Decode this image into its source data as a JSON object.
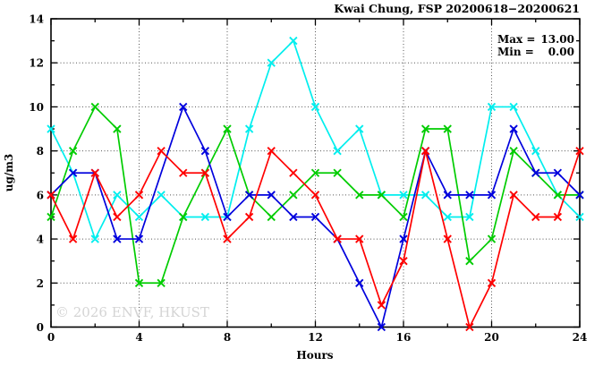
{
  "chart_data": {
    "type": "line",
    "title": "Kwai Chung, FSP 20200618−20200621",
    "xlabel": "Hours",
    "ylabel": "ug/m3",
    "xlim": [
      0,
      24
    ],
    "ylim": [
      0,
      14
    ],
    "xticks": [
      0,
      4,
      8,
      12,
      16,
      20,
      24
    ],
    "yticks": [
      0,
      2,
      4,
      6,
      8,
      10,
      12,
      14
    ],
    "x_minor_step": 2,
    "y_minor_step": 1,
    "grid": true,
    "legend": {
      "position": "top-right",
      "rows": [
        {
          "label": "Max =",
          "value": "13.00"
        },
        {
          "label": "Min =",
          "value": "0.00"
        }
      ]
    },
    "watermark": "© 2026 ENVF, HKUST",
    "x": [
      0,
      1,
      2,
      3,
      4,
      5,
      6,
      7,
      8,
      9,
      10,
      11,
      12,
      13,
      14,
      15,
      16,
      17,
      18,
      19,
      20,
      21,
      22,
      23,
      24
    ],
    "series": [
      {
        "name": "cyan",
        "color": "#00eeee",
        "values": [
          9,
          7,
          4,
          6,
          5,
          6,
          5,
          5,
          5,
          9,
          12,
          13,
          10,
          8,
          9,
          6,
          6,
          6,
          5,
          5,
          10,
          10,
          8,
          6,
          5
        ]
      },
      {
        "name": "green",
        "color": "#00cc00",
        "values": [
          5,
          8,
          10,
          9,
          2,
          2,
          5,
          7,
          9,
          6,
          5,
          6,
          7,
          7,
          6,
          6,
          5,
          9,
          9,
          3,
          4,
          8,
          7,
          6,
          6
        ]
      },
      {
        "name": "blue",
        "color": "#0000dd",
        "values": [
          6,
          7,
          7,
          4,
          4,
          null,
          10,
          8,
          5,
          6,
          6,
          5,
          5,
          4,
          2,
          0,
          4,
          8,
          6,
          6,
          6,
          9,
          7,
          7,
          6
        ]
      },
      {
        "name": "red",
        "color": "#ff0000",
        "values": [
          6,
          4,
          7,
          5,
          6,
          8,
          7,
          7,
          4,
          5,
          8,
          7,
          6,
          4,
          4,
          1,
          3,
          8,
          4,
          0,
          2,
          6,
          5,
          5,
          8
        ]
      }
    ]
  }
}
